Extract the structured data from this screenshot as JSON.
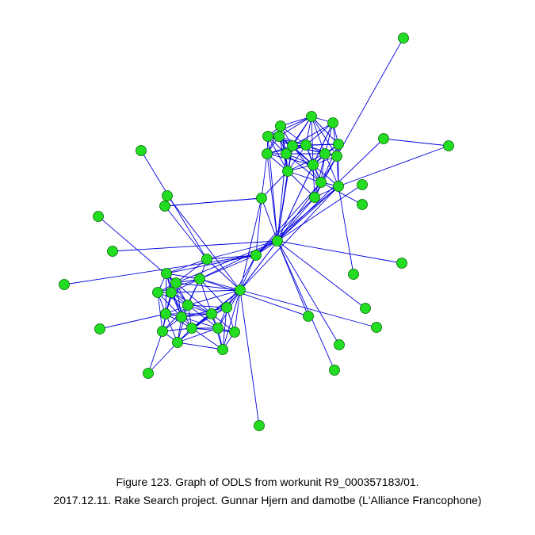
{
  "caption": {
    "line1": "Figure 123. Graph of ODLS from workunit R9_000357183/01.",
    "line2": "2017.12.11. Rake Search project. Gunnar Hjern and damotbe (L'Alliance Francophone)"
  },
  "colors": {
    "edge": "#0000dd",
    "node_fill": "#22dd22",
    "node_stroke": "#006600",
    "background": "#ffffff"
  },
  "graph": {
    "node_count": 64,
    "hubs": [
      "hub-a",
      "hub-b",
      "hub-c"
    ],
    "clusters": [
      "cluster-top-right",
      "cluster-bottom-left"
    ]
  }
}
